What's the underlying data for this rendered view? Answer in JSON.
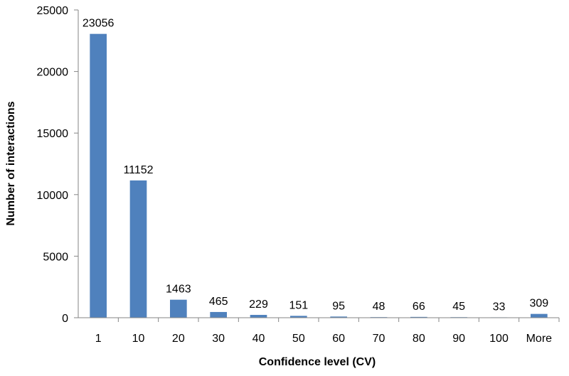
{
  "chart_data": {
    "type": "bar",
    "title": "",
    "xlabel": "Confidence level (CV)",
    "ylabel": "Number of interactions",
    "categories": [
      "1",
      "10",
      "20",
      "30",
      "40",
      "50",
      "60",
      "70",
      "80",
      "90",
      "100",
      "More"
    ],
    "values": [
      23056,
      11152,
      1463,
      465,
      229,
      151,
      95,
      48,
      66,
      45,
      33,
      309
    ],
    "data_labels": [
      "23056",
      "11152",
      "1463",
      "465",
      "229",
      "151",
      "95",
      "48",
      "66",
      "45",
      "33",
      "309"
    ],
    "ylim": [
      0,
      25000
    ],
    "yticks": [
      0,
      5000,
      10000,
      15000,
      20000,
      25000
    ],
    "ytick_labels": [
      "0",
      "5000",
      "10000",
      "15000",
      "20000",
      "25000"
    ],
    "grid": false,
    "legend": "none",
    "colors": {
      "bar": "#4F81BD",
      "axis": "#868686"
    }
  }
}
